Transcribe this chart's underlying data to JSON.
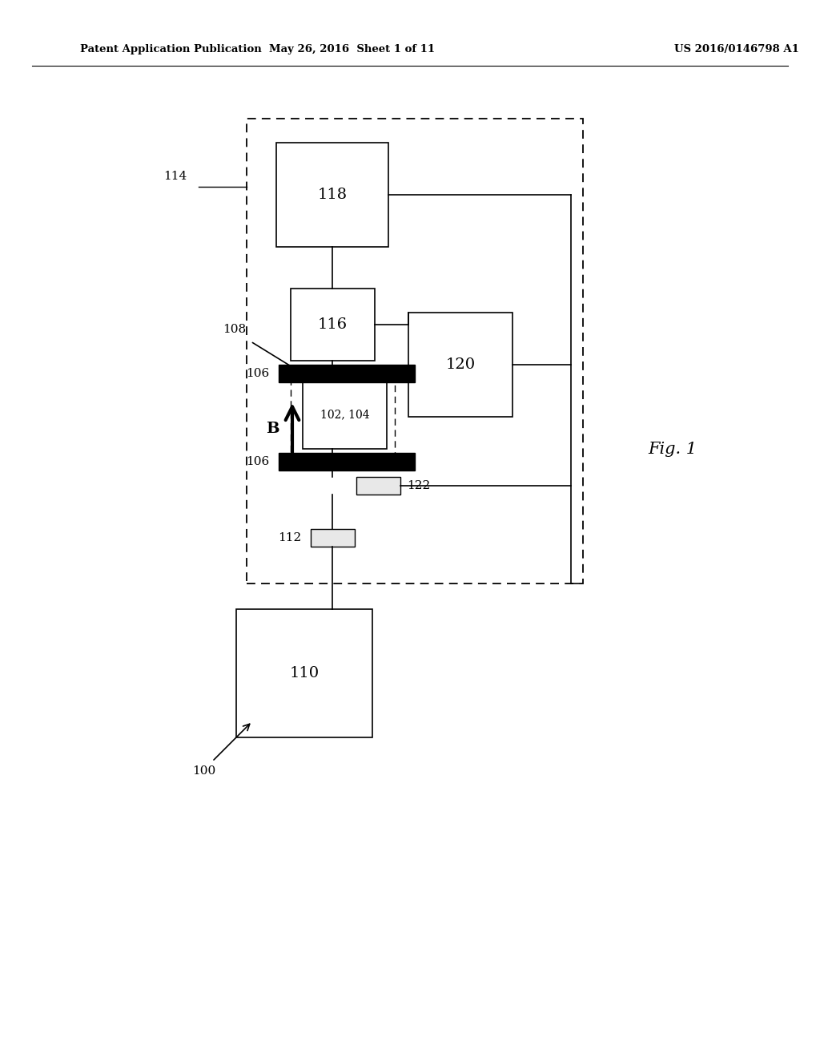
{
  "bg_color": "#ffffff",
  "header_left": "Patent Application Publication",
  "header_mid": "May 26, 2016  Sheet 1 of 11",
  "header_right": "US 2016/0146798 A1",
  "fig_label": "Fig. 1"
}
